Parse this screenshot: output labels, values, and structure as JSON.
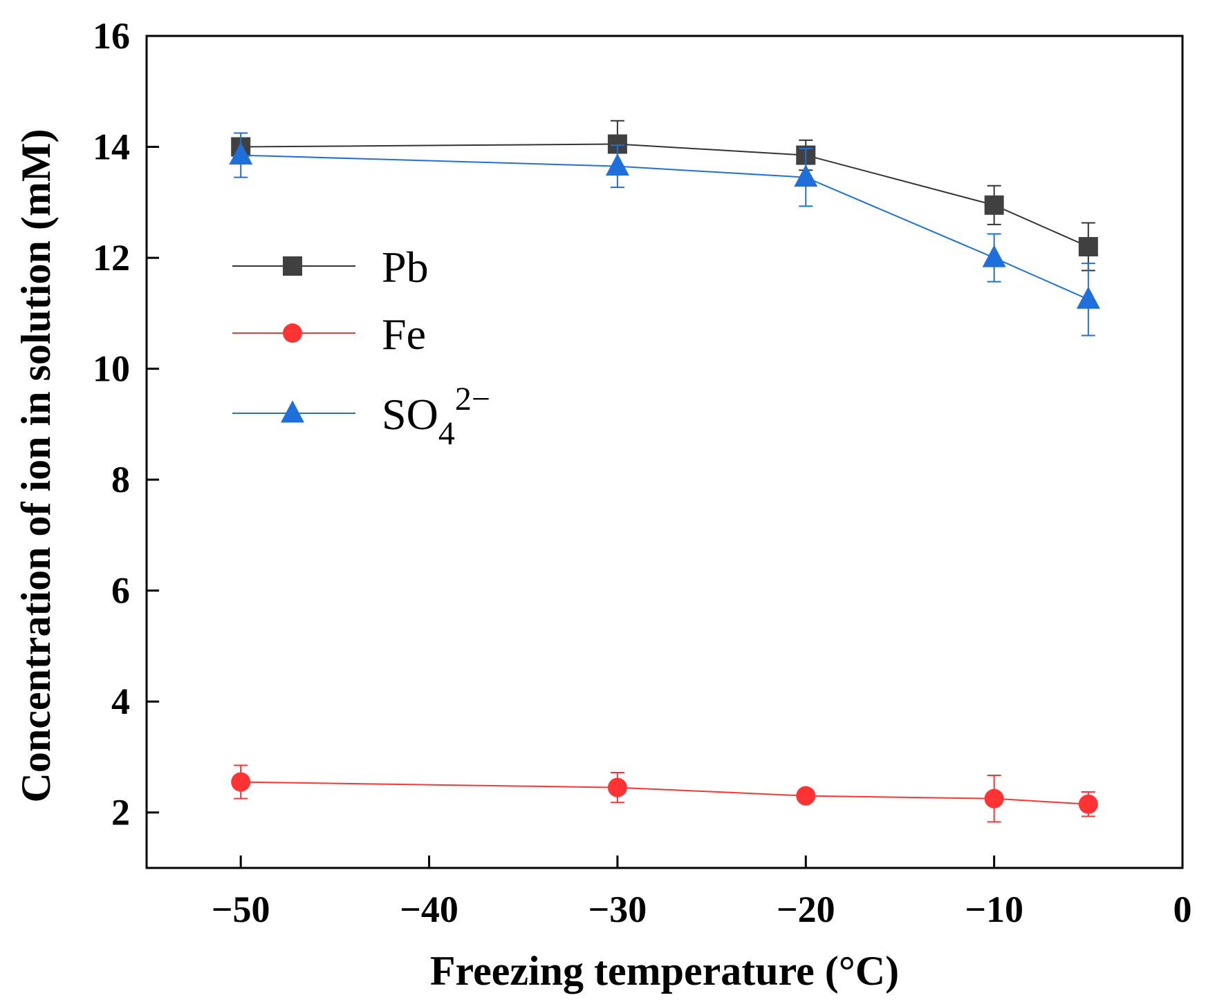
{
  "chart_data": {
    "type": "line",
    "title": "",
    "xlabel": "Freezing temperature (°C)",
    "ylabel": "Concentration of ion in solution (mM)",
    "xlim": [
      -55,
      0
    ],
    "ylim": [
      1,
      16
    ],
    "x_ticks": [
      -50,
      -40,
      -30,
      -20,
      -10,
      0
    ],
    "x_tick_labels": [
      "−50",
      "−40",
      "−30",
      "−20",
      "−10",
      "0"
    ],
    "y_ticks": [
      2,
      4,
      6,
      8,
      10,
      12,
      14,
      16
    ],
    "y_tick_labels": [
      "2",
      "4",
      "6",
      "8",
      "10",
      "12",
      "14",
      "16"
    ],
    "grid": false,
    "legend_position": "left-middle",
    "x": [
      -50,
      -30,
      -20,
      -10,
      -5
    ],
    "series": [
      {
        "name": "Pb",
        "label_main": "Pb",
        "label_sub": "",
        "label_sup": "",
        "marker": "square",
        "color": "#404040",
        "line_color": "#333333",
        "values": [
          14.0,
          14.05,
          13.85,
          12.95,
          12.2
        ],
        "errors": [
          0.12,
          0.42,
          0.27,
          0.35,
          0.43
        ]
      },
      {
        "name": "Fe",
        "label_main": "Fe",
        "label_sub": "",
        "label_sup": "",
        "marker": "circle",
        "color": "#ff3333",
        "line_color": "#ff3333",
        "values": [
          2.55,
          2.45,
          2.3,
          2.25,
          2.15
        ],
        "errors": [
          0.3,
          0.27,
          0.1,
          0.42,
          0.22
        ]
      },
      {
        "name": "SO4 2-",
        "label_main": "SO",
        "label_sub": "4",
        "label_sup": "2−",
        "marker": "triangle",
        "color": "#1f6fdb",
        "line_color": "#1f6fdb",
        "values": [
          13.85,
          13.65,
          13.45,
          12.0,
          11.25
        ],
        "errors": [
          0.4,
          0.38,
          0.52,
          0.43,
          0.65
        ]
      }
    ]
  }
}
